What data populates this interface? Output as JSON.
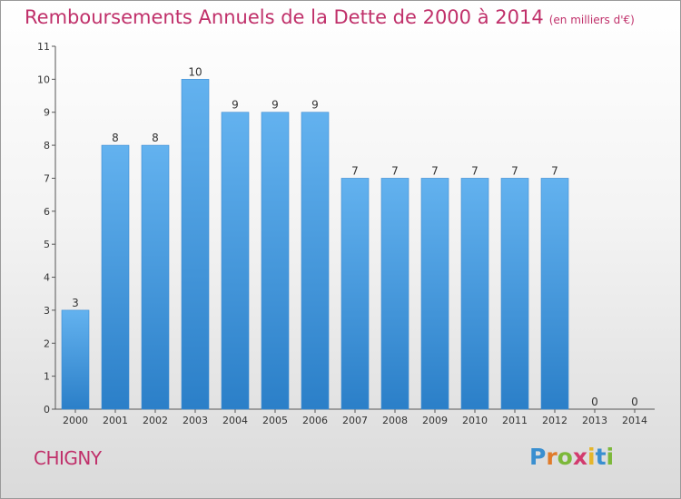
{
  "title": "Remboursements Annuels de la Dette de 2000 à 2014",
  "subtitle": "(en milliers d'€)",
  "commune": "CHIGNY",
  "logo": {
    "letters": [
      "P",
      "r",
      "o",
      "x",
      "i",
      "t",
      "i"
    ],
    "colors": [
      "#3a8fd0",
      "#e07b2a",
      "#7cb83a",
      "#d23b6e",
      "#e5b52a",
      "#3a8fd0",
      "#7cb83a"
    ]
  },
  "colors": {
    "bar_top": "#63b2ef",
    "bar_bottom": "#2b7fc8",
    "text_accent": "#c0306a"
  },
  "chart_data": {
    "type": "bar",
    "title": "Remboursements Annuels de la Dette de 2000 à 2014",
    "xlabel": "",
    "ylabel": "",
    "categories": [
      "2000",
      "2001",
      "2002",
      "2003",
      "2004",
      "2005",
      "2006",
      "2007",
      "2008",
      "2009",
      "2010",
      "2011",
      "2012",
      "2013",
      "2014"
    ],
    "values": [
      3,
      8,
      8,
      10,
      9,
      9,
      9,
      7,
      7,
      7,
      7,
      7,
      7,
      0,
      0
    ],
    "data_labels": [
      "3",
      "8",
      "8",
      "10",
      "9",
      "9",
      "9",
      "7",
      "7",
      "7",
      "7",
      "7",
      "7",
      "0",
      "0"
    ],
    "yticks": [
      "0",
      "1",
      "2",
      "3",
      "4",
      "5",
      "6",
      "7",
      "8",
      "9",
      "10",
      "11"
    ],
    "ylim": [
      0,
      11
    ],
    "grid": false,
    "legend": "none"
  }
}
